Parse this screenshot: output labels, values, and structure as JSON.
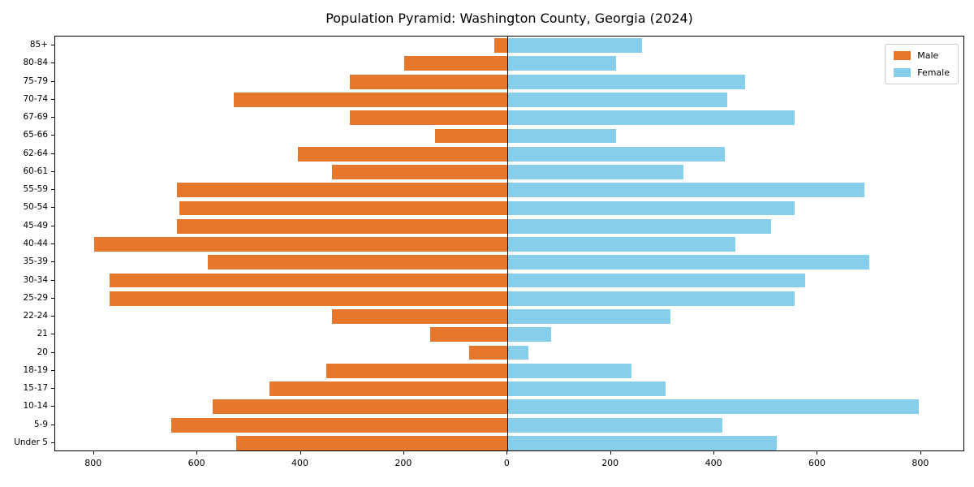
{
  "chart_data": {
    "type": "bar",
    "subtype": "population-pyramid",
    "title": "Population Pyramid: Washington County, Georgia (2024)",
    "category_order": "top-to-bottom",
    "categories": [
      "85+",
      "80-84",
      "75-79",
      "70-74",
      "67-69",
      "65-66",
      "62-64",
      "60-61",
      "55-59",
      "50-54",
      "45-49",
      "40-44",
      "35-39",
      "30-34",
      "25-29",
      "22-24",
      "21",
      "20",
      "18-19",
      "15-17",
      "10-14",
      "5-9",
      "Under 5"
    ],
    "series": [
      {
        "name": "Male",
        "side": "left",
        "color": "#e8772e",
        "values": [
          25,
          200,
          305,
          530,
          305,
          140,
          405,
          340,
          640,
          635,
          640,
          800,
          580,
          770,
          770,
          340,
          150,
          75,
          350,
          460,
          570,
          650,
          525
        ]
      },
      {
        "name": "Female",
        "side": "right",
        "color": "#87ceeb",
        "values": [
          260,
          210,
          460,
          425,
          555,
          210,
          420,
          340,
          690,
          555,
          510,
          440,
          700,
          575,
          555,
          315,
          85,
          40,
          240,
          305,
          795,
          415,
          520
        ]
      }
    ],
    "x_ticks": [
      -800,
      -600,
      -400,
      -200,
      0,
      200,
      400,
      600,
      800
    ],
    "x_tick_labels": [
      "800",
      "600",
      "400",
      "200",
      "0",
      "200",
      "400",
      "600",
      "800"
    ],
    "xlim": [
      -875,
      885
    ],
    "xlabel": "",
    "ylabel": "",
    "grid": false,
    "legend_position": "upper right",
    "legend_entries": [
      "Male",
      "Female"
    ]
  }
}
